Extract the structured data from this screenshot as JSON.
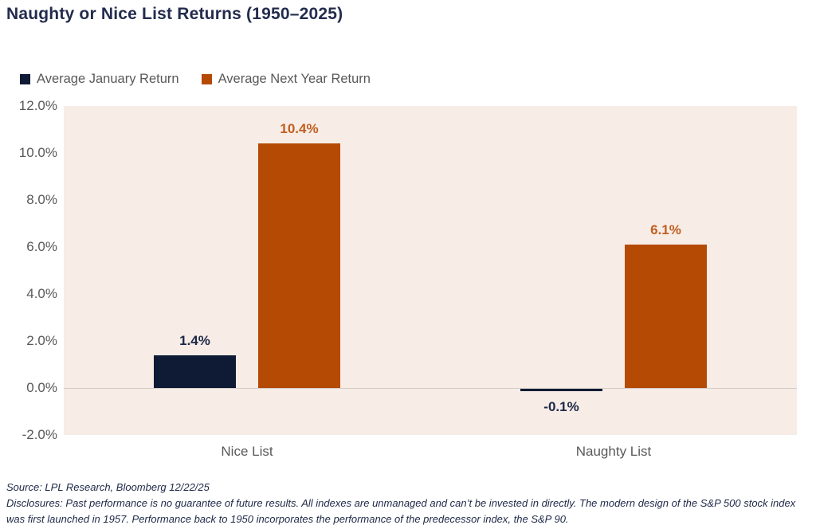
{
  "title": "Naughty or Nice List Returns (1950–2025)",
  "colors": {
    "navy": "#0f1b35",
    "orange": "#b54a05",
    "navy_label": "#1d2847",
    "orange_label": "#c05f20",
    "plot_background": "#f7ece6",
    "zero_line": "#d2cbc7",
    "axis_text": "#595959",
    "title_text": "#232c4e"
  },
  "legend": [
    {
      "label": "Average January Return",
      "color": "#0f1b35"
    },
    {
      "label": "Average Next Year Return",
      "color": "#b54a05"
    }
  ],
  "chart_data": {
    "type": "bar",
    "categories": [
      "Nice List",
      "Naughty List"
    ],
    "series": [
      {
        "name": "Average January Return",
        "color": "#0f1b35",
        "label_color": "#1d2847",
        "values": [
          1.4,
          -0.1
        ],
        "labels": [
          "1.4%",
          "-0.1%"
        ]
      },
      {
        "name": "Average Next Year Return",
        "color": "#b54a05",
        "label_color": "#c05f20",
        "values": [
          10.4,
          6.1
        ],
        "labels": [
          "10.4%",
          "6.1%"
        ]
      }
    ],
    "title": "Naughty or Nice List Returns (1950–2025)",
    "xlabel": "",
    "ylabel": "",
    "ylim": [
      -2,
      12
    ],
    "ytick_step": 2,
    "ytick_labels": [
      "12.0%",
      "10.0%",
      "8.0%",
      "6.0%",
      "4.0%",
      "2.0%",
      "0.0%",
      "-2.0%"
    ],
    "grid": false,
    "legend_position": "top-left"
  },
  "footer": {
    "source": "Source: LPL Research, Bloomberg 12/22/25",
    "disclosures": "Disclosures: Past performance is no guarantee of future results. All indexes are unmanaged and can’t be invested in directly. The modern design of the S&P 500 stock index was first launched in 1957. Performance back to 1950 incorporates the performance of the predecessor index, the S&P 90."
  }
}
